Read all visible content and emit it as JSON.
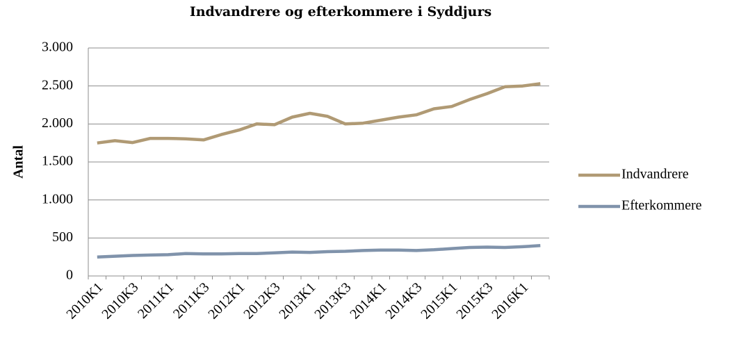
{
  "chart_data": {
    "type": "line",
    "title": "Indvandrere og efterkommere i Syddjurs",
    "y_label": "Antal",
    "categories": [
      "2010K1",
      null,
      "2010K3",
      null,
      "2011K1",
      null,
      "2011K3",
      null,
      "2012K1",
      null,
      "2012K3",
      null,
      "2013K1",
      null,
      "2013K3",
      null,
      "2014K1",
      null,
      "2014K3",
      null,
      "2015K1",
      null,
      "2015K3",
      null,
      "2016K1",
      null
    ],
    "series": [
      {
        "name": "Indvandrere",
        "color": "#b09a74",
        "values": [
          1750,
          1780,
          1755,
          1810,
          1810,
          1805,
          1790,
          1860,
          1920,
          2000,
          1990,
          2090,
          2140,
          2100,
          2000,
          2010,
          2050,
          2090,
          2120,
          2200,
          2230,
          2320,
          2400,
          2490,
          2500,
          2530
        ]
      },
      {
        "name": "Efterkommere",
        "color": "#8093ab",
        "values": [
          250,
          260,
          270,
          275,
          280,
          295,
          290,
          290,
          295,
          295,
          305,
          315,
          310,
          320,
          325,
          335,
          340,
          340,
          335,
          345,
          360,
          375,
          380,
          375,
          385,
          400
        ]
      }
    ],
    "ylim": [
      0,
      3000
    ],
    "yticks": [
      0,
      500,
      {
        "value": 1000,
        "label": "1.000"
      },
      {
        "value": 1500,
        "label": "1.500"
      },
      {
        "value": 2000,
        "label": "2.000"
      },
      {
        "value": 2500,
        "label": "2.500"
      },
      {
        "value": 3000,
        "label": "3.000"
      }
    ],
    "grid": true,
    "legend": "right"
  }
}
